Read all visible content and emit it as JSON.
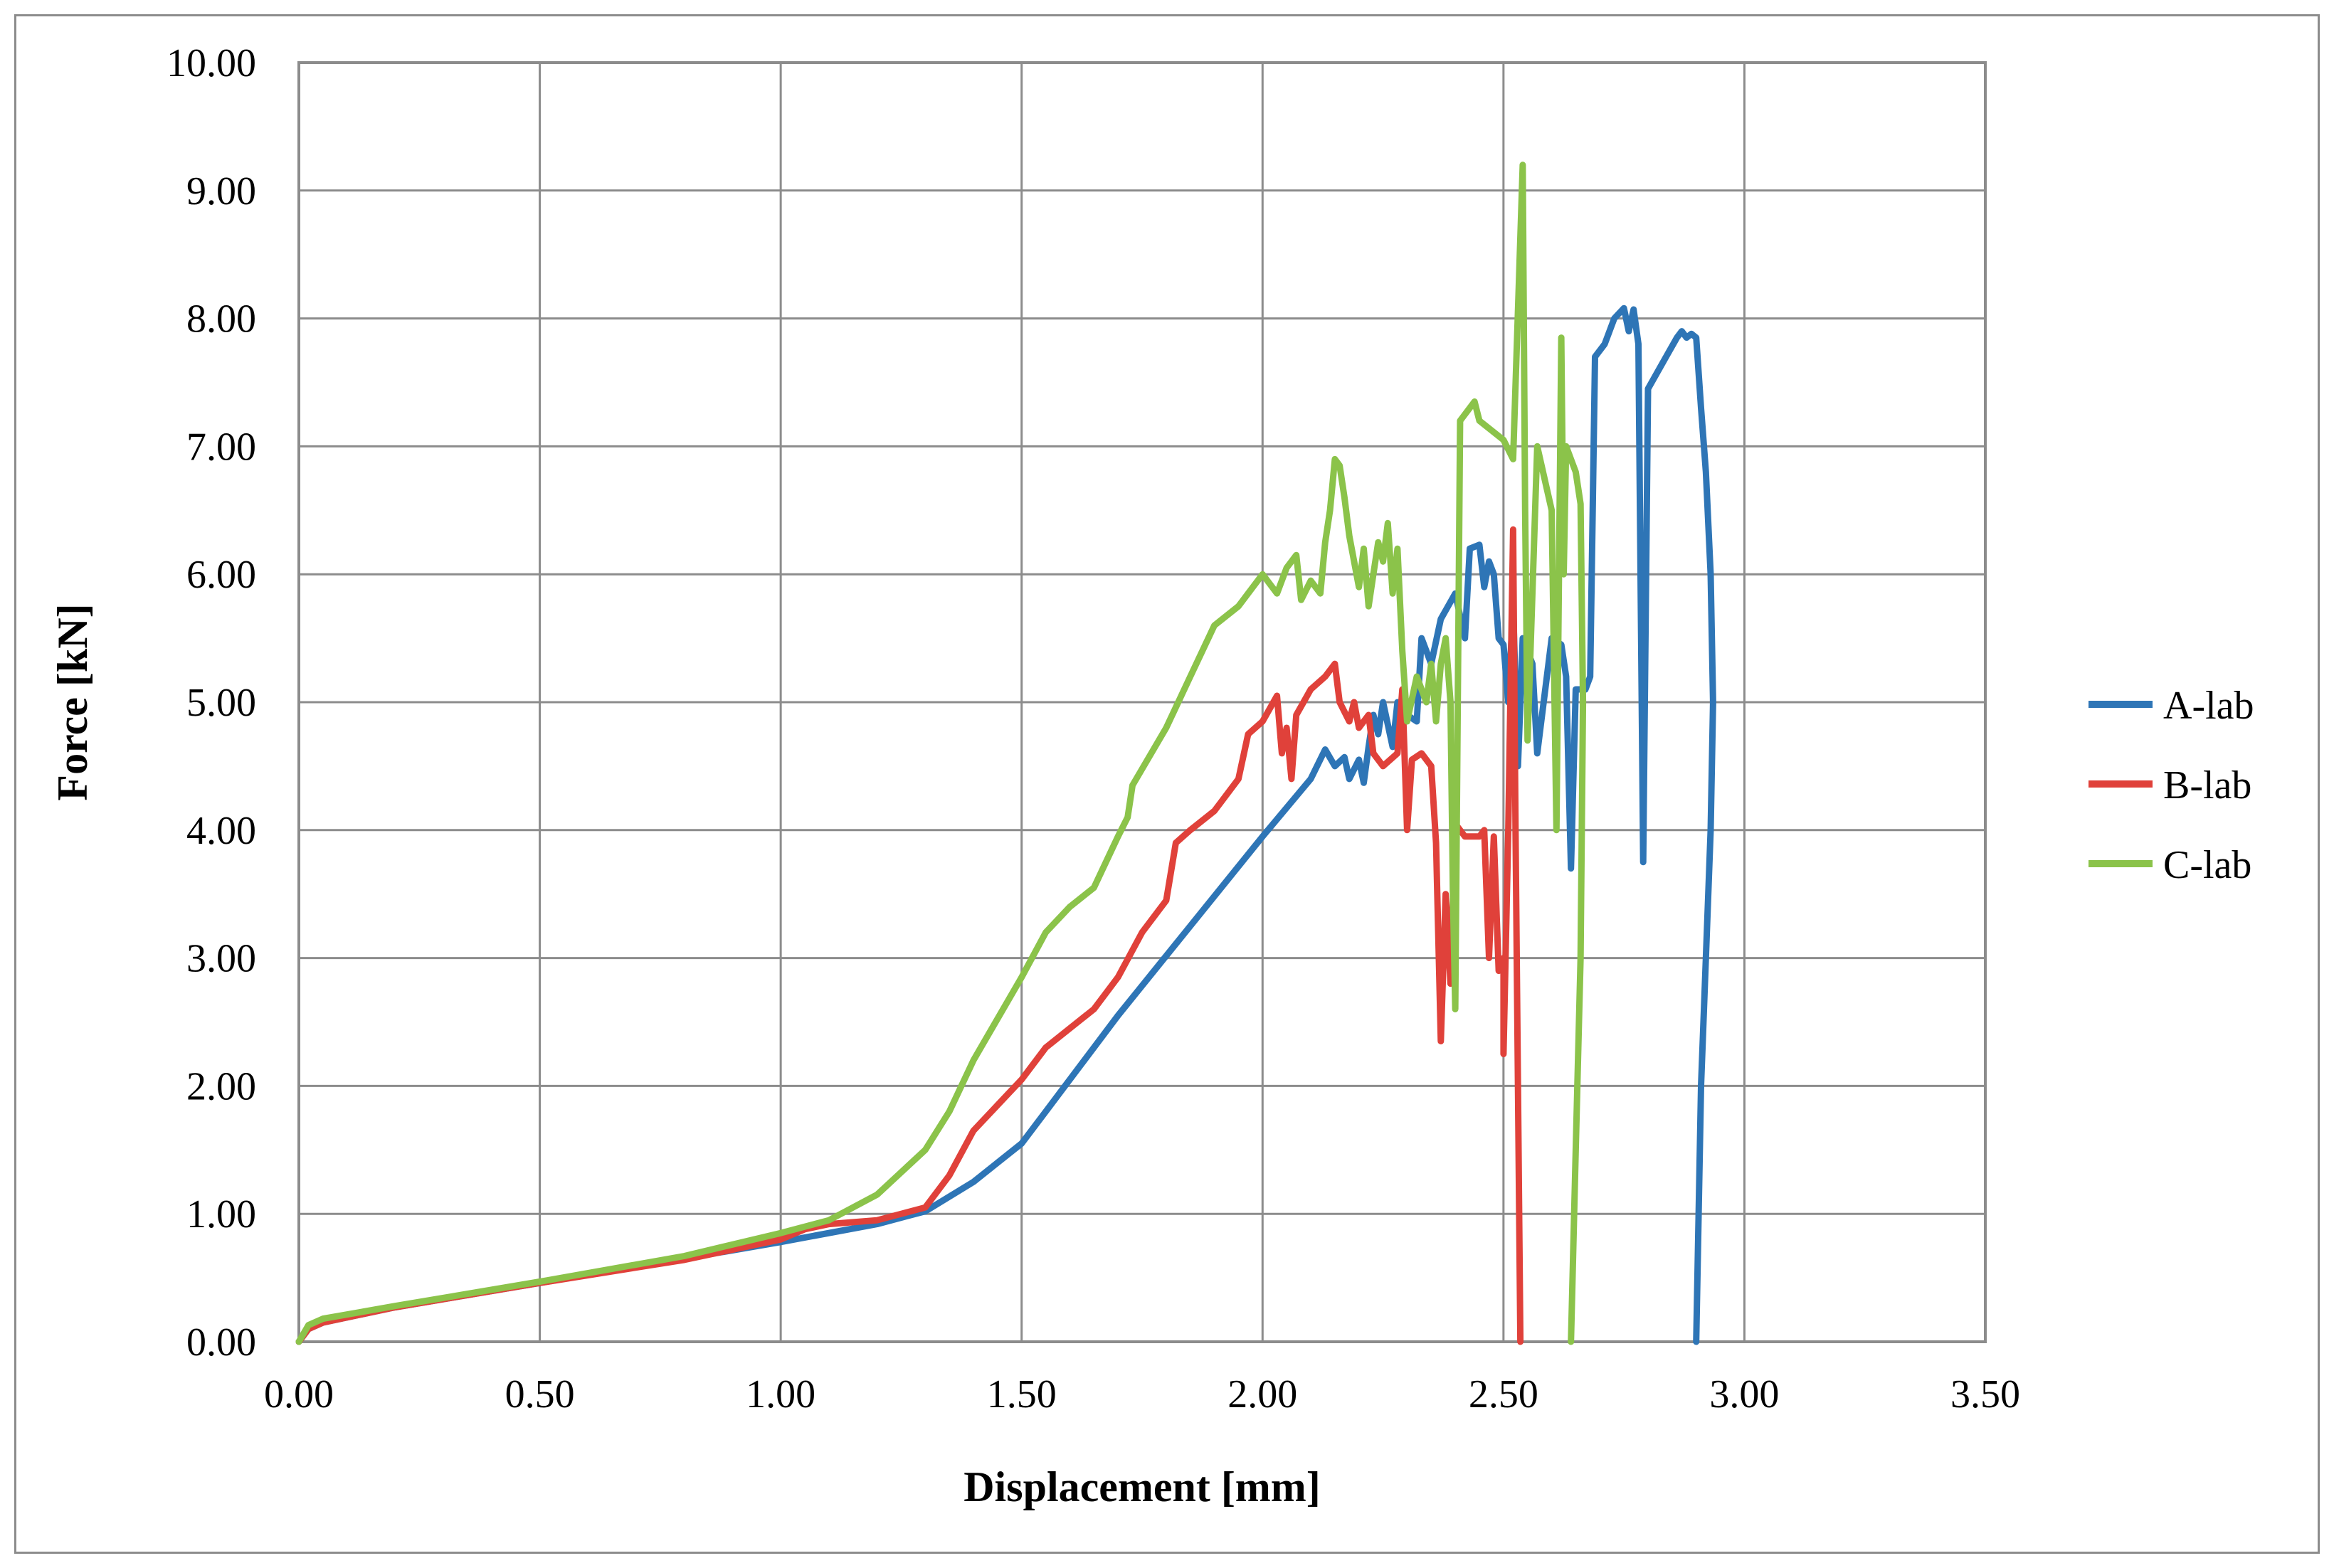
{
  "chart_data": {
    "type": "line",
    "xlabel": "Displacement [mm]",
    "ylabel": "Force [kN]",
    "xlim": [
      0,
      3.5
    ],
    "ylim": [
      0,
      10
    ],
    "x_ticks": [
      "0.00",
      "0.50",
      "1.00",
      "1.50",
      "2.00",
      "2.50",
      "3.00",
      "3.50"
    ],
    "y_ticks": [
      "0.00",
      "1.00",
      "2.00",
      "3.00",
      "4.00",
      "5.00",
      "6.00",
      "7.00",
      "8.00",
      "9.00",
      "10.00"
    ],
    "grid": true,
    "legend_position": "right",
    "series": [
      {
        "name": "A-lab",
        "color": "#2e75b6",
        "points": [
          [
            0,
            0
          ],
          [
            0.02,
            0.1
          ],
          [
            0.05,
            0.15
          ],
          [
            0.2,
            0.27
          ],
          [
            0.5,
            0.46
          ],
          [
            0.8,
            0.65
          ],
          [
            1.0,
            0.78
          ],
          [
            1.2,
            0.92
          ],
          [
            1.3,
            1.02
          ],
          [
            1.4,
            1.25
          ],
          [
            1.5,
            1.55
          ],
          [
            1.55,
            1.8
          ],
          [
            1.7,
            2.55
          ],
          [
            1.85,
            3.25
          ],
          [
            2.0,
            3.95
          ],
          [
            2.1,
            4.4
          ],
          [
            2.13,
            4.63
          ],
          [
            2.15,
            4.5
          ],
          [
            2.17,
            4.57
          ],
          [
            2.18,
            4.4
          ],
          [
            2.2,
            4.55
          ],
          [
            2.21,
            4.37
          ],
          [
            2.22,
            4.65
          ],
          [
            2.23,
            4.9
          ],
          [
            2.24,
            4.75
          ],
          [
            2.25,
            5.0
          ],
          [
            2.27,
            4.65
          ],
          [
            2.28,
            5.0
          ],
          [
            2.3,
            4.9
          ],
          [
            2.32,
            4.85
          ],
          [
            2.33,
            5.5
          ],
          [
            2.35,
            5.3
          ],
          [
            2.37,
            5.65
          ],
          [
            2.4,
            5.85
          ],
          [
            2.42,
            5.5
          ],
          [
            2.43,
            6.2
          ],
          [
            2.45,
            6.23
          ],
          [
            2.46,
            5.9
          ],
          [
            2.47,
            6.1
          ],
          [
            2.48,
            6.0
          ],
          [
            2.49,
            5.5
          ],
          [
            2.5,
            5.45
          ],
          [
            2.51,
            5.0
          ],
          [
            2.52,
            5.75
          ],
          [
            2.53,
            4.5
          ],
          [
            2.54,
            5.5
          ],
          [
            2.56,
            5.3
          ],
          [
            2.57,
            4.6
          ],
          [
            2.6,
            5.5
          ],
          [
            2.62,
            5.45
          ],
          [
            2.63,
            5.2
          ],
          [
            2.64,
            3.7
          ],
          [
            2.65,
            5.1
          ],
          [
            2.67,
            5.1
          ],
          [
            2.68,
            5.2
          ],
          [
            2.69,
            7.7
          ],
          [
            2.71,
            7.8
          ],
          [
            2.73,
            8.0
          ],
          [
            2.75,
            8.08
          ],
          [
            2.76,
            7.9
          ],
          [
            2.77,
            8.07
          ],
          [
            2.78,
            7.8
          ],
          [
            2.79,
            3.75
          ],
          [
            2.8,
            7.45
          ],
          [
            2.83,
            7.65
          ],
          [
            2.86,
            7.85
          ],
          [
            2.87,
            7.9
          ],
          [
            2.88,
            7.85
          ],
          [
            2.89,
            7.88
          ],
          [
            2.9,
            7.85
          ],
          [
            2.91,
            7.3
          ],
          [
            2.92,
            6.8
          ],
          [
            2.93,
            6.0
          ],
          [
            2.935,
            5.0
          ],
          [
            2.93,
            4.0
          ],
          [
            2.92,
            3.0
          ],
          [
            2.91,
            2.0
          ],
          [
            2.905,
            1.0
          ],
          [
            2.9,
            0
          ]
        ]
      },
      {
        "name": "B-lab",
        "color": "#e0413a",
        "points": [
          [
            0,
            0
          ],
          [
            0.02,
            0.1
          ],
          [
            0.05,
            0.15
          ],
          [
            0.2,
            0.27
          ],
          [
            0.5,
            0.46
          ],
          [
            0.8,
            0.64
          ],
          [
            1.0,
            0.8
          ],
          [
            1.05,
            0.88
          ],
          [
            1.1,
            0.92
          ],
          [
            1.2,
            0.95
          ],
          [
            1.3,
            1.05
          ],
          [
            1.35,
            1.3
          ],
          [
            1.4,
            1.65
          ],
          [
            1.5,
            2.05
          ],
          [
            1.55,
            2.3
          ],
          [
            1.6,
            2.45
          ],
          [
            1.65,
            2.6
          ],
          [
            1.7,
            2.85
          ],
          [
            1.75,
            3.2
          ],
          [
            1.8,
            3.45
          ],
          [
            1.82,
            3.9
          ],
          [
            1.85,
            4.0
          ],
          [
            1.9,
            4.15
          ],
          [
            1.95,
            4.4
          ],
          [
            1.97,
            4.75
          ],
          [
            2.0,
            4.85
          ],
          [
            2.03,
            5.05
          ],
          [
            2.04,
            4.6
          ],
          [
            2.05,
            4.8
          ],
          [
            2.06,
            4.4
          ],
          [
            2.07,
            4.9
          ],
          [
            2.1,
            5.1
          ],
          [
            2.13,
            5.2
          ],
          [
            2.15,
            5.3
          ],
          [
            2.16,
            5.0
          ],
          [
            2.18,
            4.85
          ],
          [
            2.19,
            5.0
          ],
          [
            2.2,
            4.8
          ],
          [
            2.22,
            4.9
          ],
          [
            2.23,
            4.6
          ],
          [
            2.25,
            4.5
          ],
          [
            2.28,
            4.6
          ],
          [
            2.29,
            5.1
          ],
          [
            2.3,
            4.0
          ],
          [
            2.31,
            4.55
          ],
          [
            2.33,
            4.6
          ],
          [
            2.35,
            4.5
          ],
          [
            2.36,
            3.9
          ],
          [
            2.37,
            2.35
          ],
          [
            2.38,
            3.5
          ],
          [
            2.39,
            2.8
          ],
          [
            2.4,
            4.05
          ],
          [
            2.42,
            3.95
          ],
          [
            2.45,
            3.95
          ],
          [
            2.46,
            4.0
          ],
          [
            2.47,
            3.0
          ],
          [
            2.48,
            3.95
          ],
          [
            2.49,
            2.9
          ],
          [
            2.5,
            3.0
          ],
          [
            2.5,
            2.25
          ],
          [
            2.51,
            4.0
          ],
          [
            2.52,
            6.35
          ],
          [
            2.525,
            4.0
          ],
          [
            2.53,
            2.0
          ],
          [
            2.535,
            0
          ]
        ]
      },
      {
        "name": "C-lab",
        "color": "#8bc34a",
        "points": [
          [
            0,
            0
          ],
          [
            0.02,
            0.13
          ],
          [
            0.05,
            0.18
          ],
          [
            0.2,
            0.28
          ],
          [
            0.5,
            0.47
          ],
          [
            0.8,
            0.67
          ],
          [
            1.0,
            0.85
          ],
          [
            1.1,
            0.95
          ],
          [
            1.2,
            1.15
          ],
          [
            1.3,
            1.5
          ],
          [
            1.35,
            1.8
          ],
          [
            1.4,
            2.2
          ],
          [
            1.5,
            2.85
          ],
          [
            1.55,
            3.2
          ],
          [
            1.6,
            3.4
          ],
          [
            1.65,
            3.55
          ],
          [
            1.7,
            3.95
          ],
          [
            1.72,
            4.1
          ],
          [
            1.73,
            4.35
          ],
          [
            1.8,
            4.8
          ],
          [
            1.85,
            5.2
          ],
          [
            1.9,
            5.6
          ],
          [
            1.95,
            5.75
          ],
          [
            2.0,
            6.0
          ],
          [
            2.03,
            5.85
          ],
          [
            2.05,
            6.05
          ],
          [
            2.07,
            6.15
          ],
          [
            2.08,
            5.8
          ],
          [
            2.1,
            5.95
          ],
          [
            2.12,
            5.85
          ],
          [
            2.13,
            6.25
          ],
          [
            2.14,
            6.5
          ],
          [
            2.15,
            6.9
          ],
          [
            2.16,
            6.85
          ],
          [
            2.17,
            6.6
          ],
          [
            2.18,
            6.3
          ],
          [
            2.2,
            5.9
          ],
          [
            2.21,
            6.2
          ],
          [
            2.22,
            5.75
          ],
          [
            2.23,
            6.0
          ],
          [
            2.24,
            6.25
          ],
          [
            2.25,
            6.1
          ],
          [
            2.26,
            6.4
          ],
          [
            2.27,
            5.85
          ],
          [
            2.28,
            6.2
          ],
          [
            2.29,
            5.4
          ],
          [
            2.3,
            4.85
          ],
          [
            2.32,
            5.2
          ],
          [
            2.34,
            5.0
          ],
          [
            2.35,
            5.3
          ],
          [
            2.36,
            4.85
          ],
          [
            2.37,
            5.3
          ],
          [
            2.38,
            5.5
          ],
          [
            2.39,
            5.0
          ],
          [
            2.395,
            3.5
          ],
          [
            2.4,
            2.6
          ],
          [
            2.41,
            7.2
          ],
          [
            2.44,
            7.35
          ],
          [
            2.45,
            7.2
          ],
          [
            2.5,
            7.05
          ],
          [
            2.52,
            6.9
          ],
          [
            2.54,
            9.2
          ],
          [
            2.545,
            6.5
          ],
          [
            2.55,
            4.7
          ],
          [
            2.57,
            7.0
          ],
          [
            2.6,
            6.5
          ],
          [
            2.61,
            4.0
          ],
          [
            2.62,
            7.85
          ],
          [
            2.625,
            6.0
          ],
          [
            2.63,
            7.0
          ],
          [
            2.65,
            6.8
          ],
          [
            2.66,
            6.55
          ],
          [
            2.665,
            5.0
          ],
          [
            2.66,
            3.0
          ],
          [
            2.65,
            1.5
          ],
          [
            2.64,
            0
          ]
        ]
      }
    ]
  }
}
